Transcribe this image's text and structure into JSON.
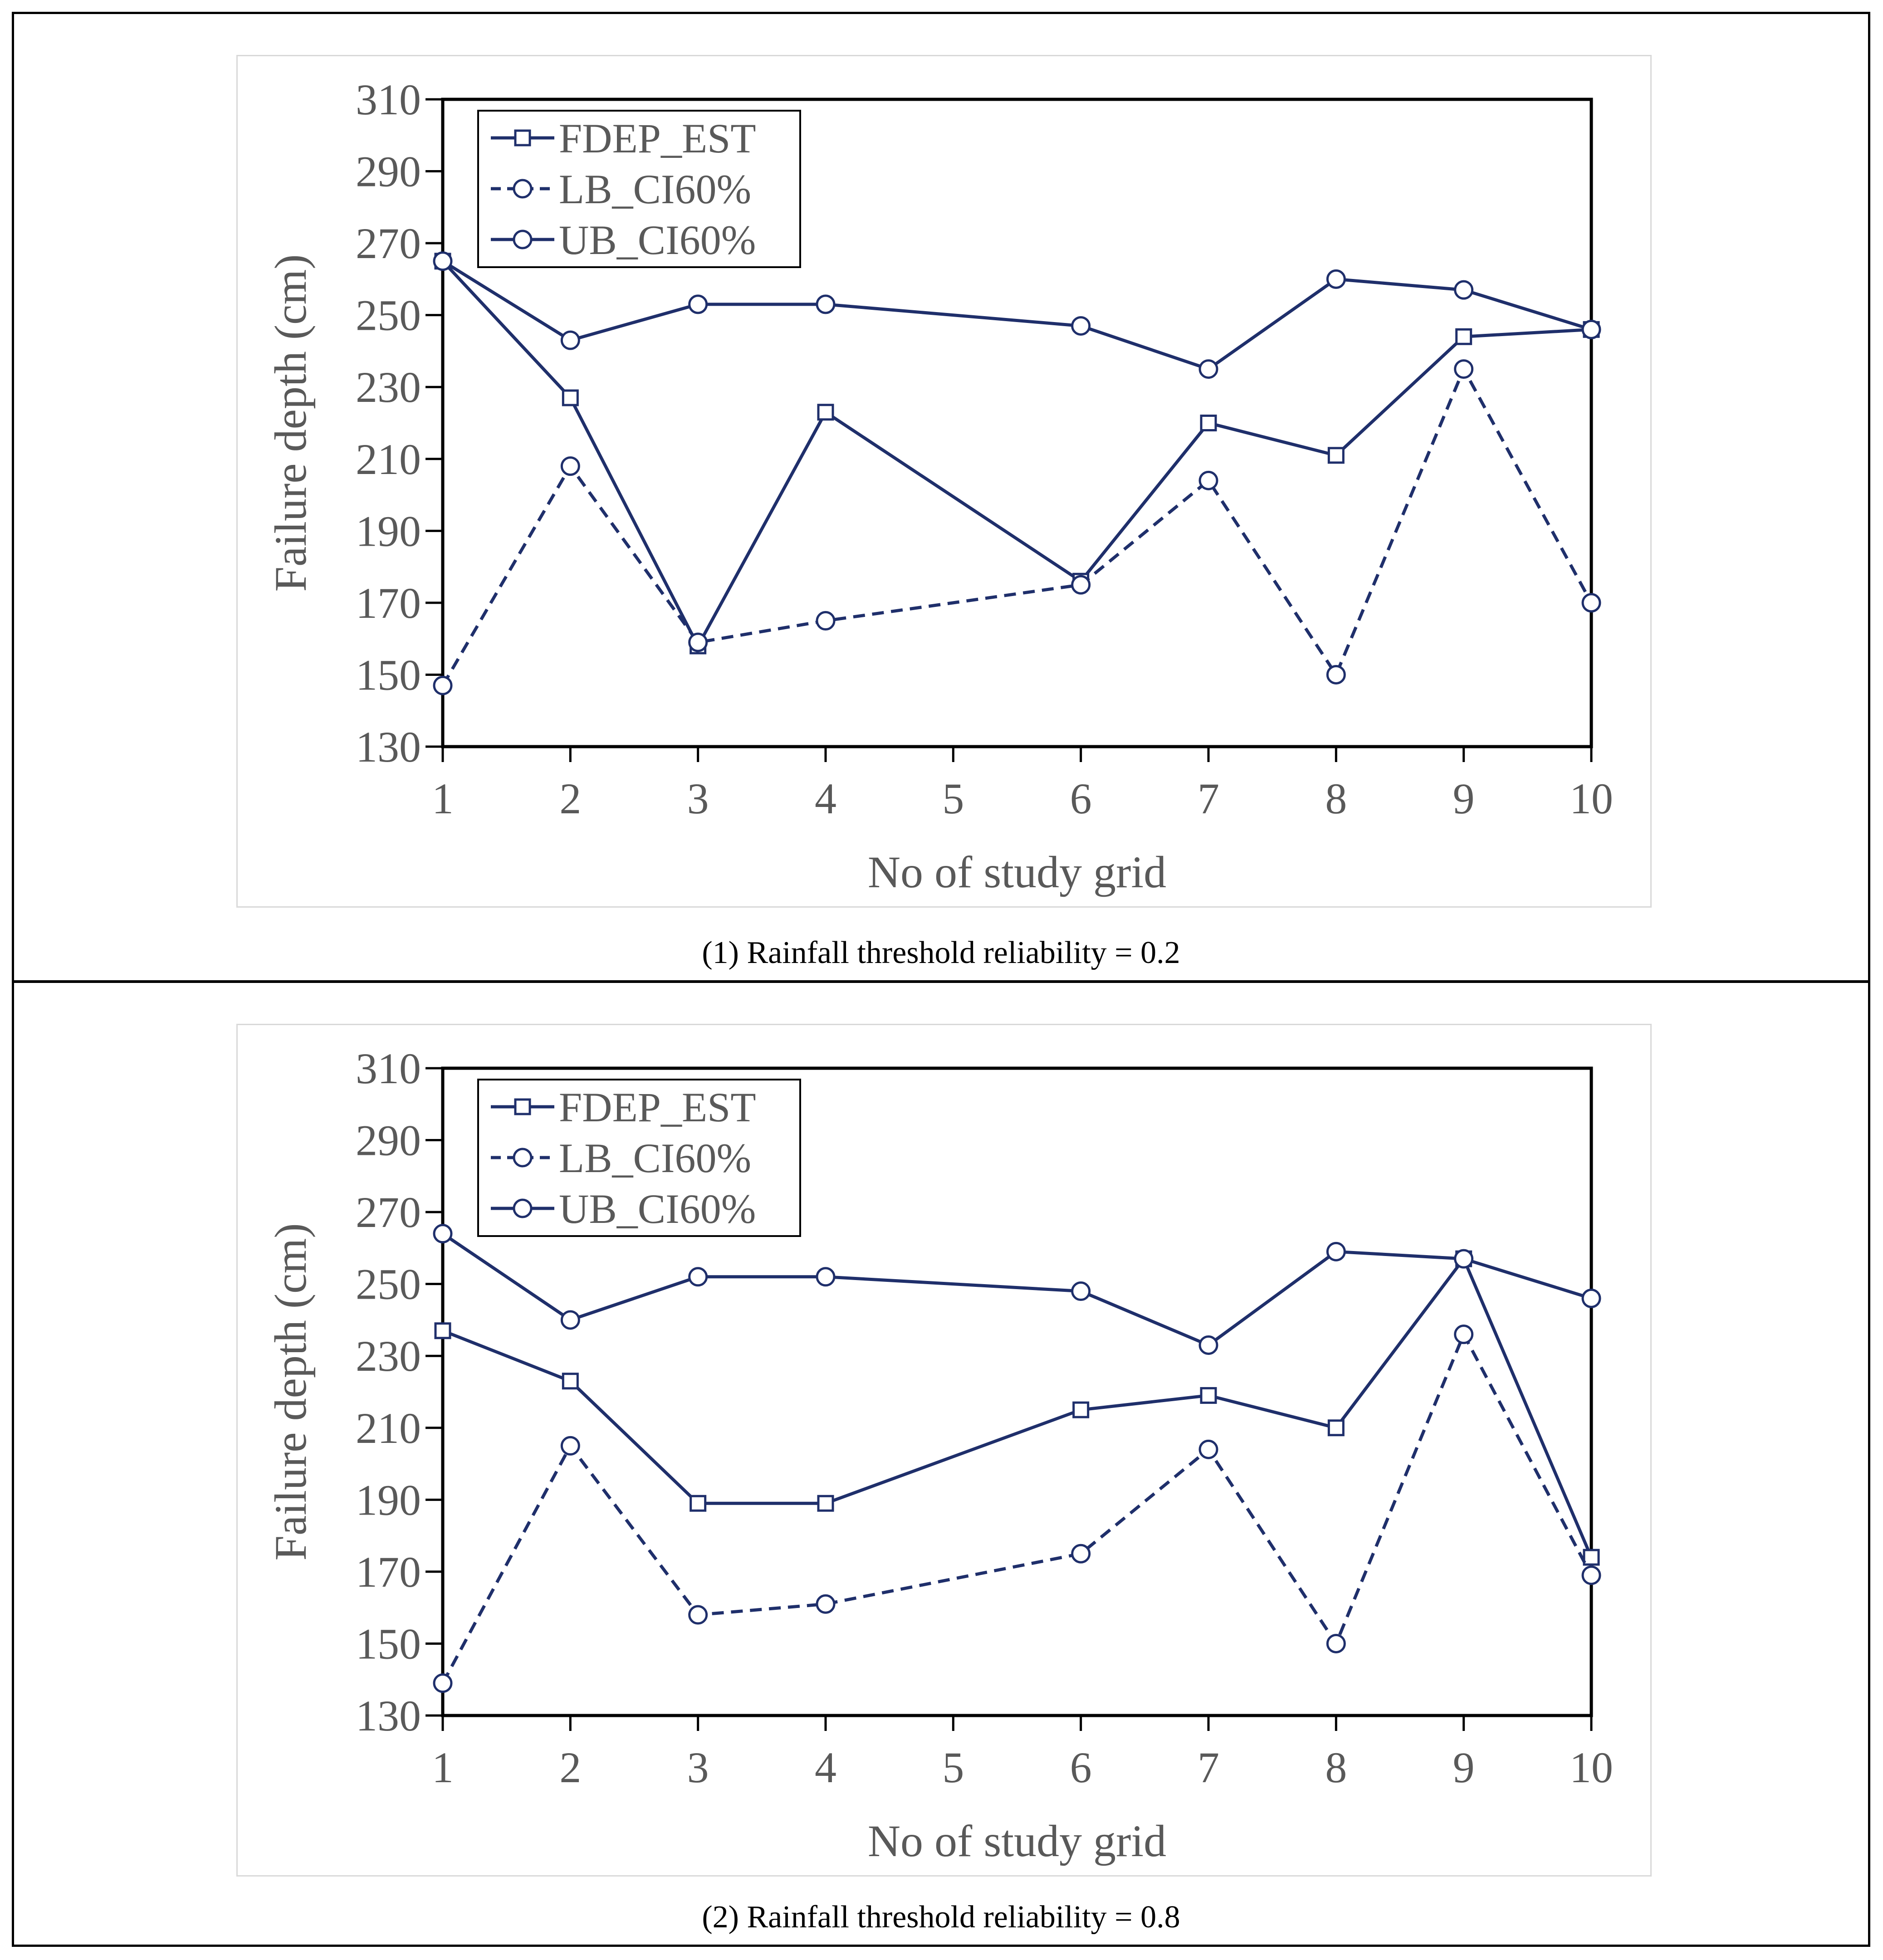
{
  "panels": [
    {
      "caption": "(1) Rainfall threshold reliability = 0.2"
    },
    {
      "caption": "(2) Rainfall threshold reliability = 0.8"
    }
  ],
  "chart_data": [
    {
      "type": "line",
      "title": "",
      "xlabel": "No of study grid",
      "ylabel": "Failure depth (cm)",
      "categories": [
        "1",
        "2",
        "3",
        "4",
        "5",
        "6",
        "7",
        "8",
        "9",
        "10"
      ],
      "x_ticks": [
        1,
        2,
        3,
        4,
        5,
        6,
        7,
        8,
        9,
        10
      ],
      "ylim": [
        130,
        310
      ],
      "yticks": [
        130,
        150,
        170,
        190,
        210,
        230,
        250,
        270,
        290,
        310
      ],
      "legend_position": "top-left",
      "line_color": "#1f2f6b",
      "series": [
        {
          "name": "FDEP_EST",
          "marker": "square",
          "dash": "solid",
          "x": [
            1,
            2,
            3,
            4,
            6,
            7,
            8,
            9,
            10
          ],
          "values": [
            265,
            227,
            158,
            223,
            176,
            220,
            211,
            244,
            246
          ]
        },
        {
          "name": "LB_CI60%",
          "marker": "circle",
          "dash": "dashed",
          "x": [
            1,
            2,
            3,
            4,
            6,
            7,
            8,
            9,
            10
          ],
          "values": [
            147,
            208,
            159,
            165,
            175,
            204,
            150,
            235,
            170
          ]
        },
        {
          "name": "UB_CI60%",
          "marker": "circle",
          "dash": "solid",
          "x": [
            1,
            2,
            3,
            4,
            6,
            7,
            8,
            9,
            10
          ],
          "values": [
            265,
            243,
            253,
            253,
            247,
            235,
            260,
            257,
            246
          ]
        }
      ]
    },
    {
      "type": "line",
      "title": "",
      "xlabel": "No of study grid",
      "ylabel": "Failure depth (cm)",
      "categories": [
        "1",
        "2",
        "3",
        "4",
        "5",
        "6",
        "7",
        "8",
        "9",
        "10"
      ],
      "x_ticks": [
        1,
        2,
        3,
        4,
        5,
        6,
        7,
        8,
        9,
        10
      ],
      "ylim": [
        130,
        310
      ],
      "yticks": [
        130,
        150,
        170,
        190,
        210,
        230,
        250,
        270,
        290,
        310
      ],
      "legend_position": "top-left",
      "line_color": "#1f2f6b",
      "series": [
        {
          "name": "FDEP_EST",
          "marker": "square",
          "dash": "solid",
          "x": [
            1,
            2,
            3,
            4,
            6,
            7,
            8,
            9,
            10
          ],
          "values": [
            237,
            223,
            189,
            189,
            215,
            219,
            210,
            257,
            174
          ]
        },
        {
          "name": "LB_CI60%",
          "marker": "circle",
          "dash": "dashed",
          "x": [
            1,
            2,
            3,
            4,
            6,
            7,
            8,
            9,
            10
          ],
          "values": [
            139,
            205,
            158,
            161,
            175,
            204,
            150,
            236,
            169
          ]
        },
        {
          "name": "UB_CI60%",
          "marker": "circle",
          "dash": "solid",
          "x": [
            1,
            2,
            3,
            4,
            6,
            7,
            8,
            9,
            10
          ],
          "values": [
            264,
            240,
            252,
            252,
            248,
            233,
            259,
            257,
            246
          ]
        }
      ]
    }
  ]
}
